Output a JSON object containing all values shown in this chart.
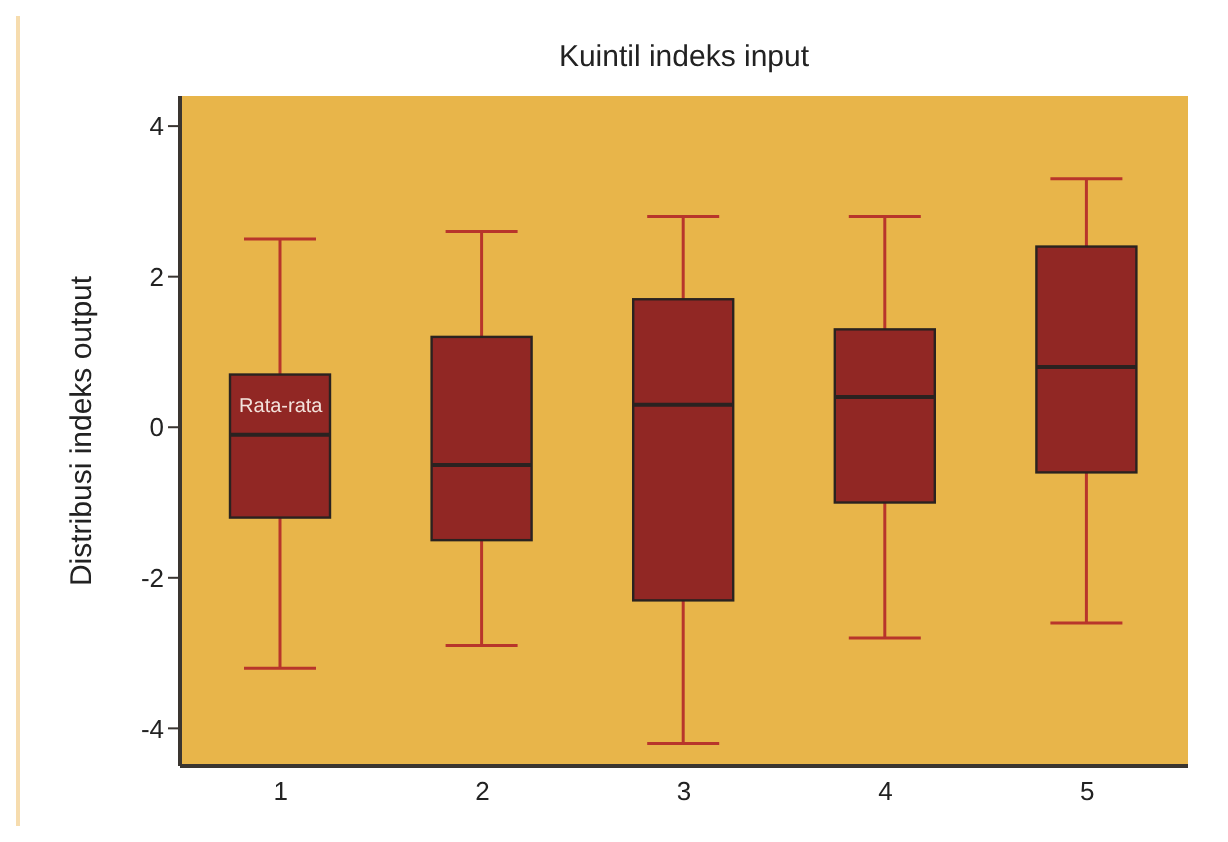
{
  "chart_data": {
    "type": "box",
    "title": "Kuintil indeks input",
    "ylabel": "Distribusi indeks output",
    "categories": [
      "1",
      "2",
      "3",
      "4",
      "5"
    ],
    "boxes": [
      {
        "low": -3.2,
        "q1": -1.2,
        "median": -0.1,
        "q3": 0.7,
        "high": 2.5
      },
      {
        "low": -2.9,
        "q1": -1.5,
        "median": -0.5,
        "q3": 1.2,
        "high": 2.6
      },
      {
        "low": -4.2,
        "q1": -2.3,
        "median": 0.3,
        "q3": 1.7,
        "high": 2.8
      },
      {
        "low": -2.8,
        "q1": -1.0,
        "median": 0.4,
        "q3": 1.3,
        "high": 2.8
      },
      {
        "low": -2.6,
        "q1": -0.6,
        "median": 0.8,
        "q3": 2.4,
        "high": 3.3
      }
    ],
    "color": "#912724",
    "ylim": [
      -4.5,
      4.4
    ],
    "yticks": [
      -4,
      -2,
      0,
      2,
      4
    ],
    "annotations": [
      "Rata-rata"
    ]
  }
}
